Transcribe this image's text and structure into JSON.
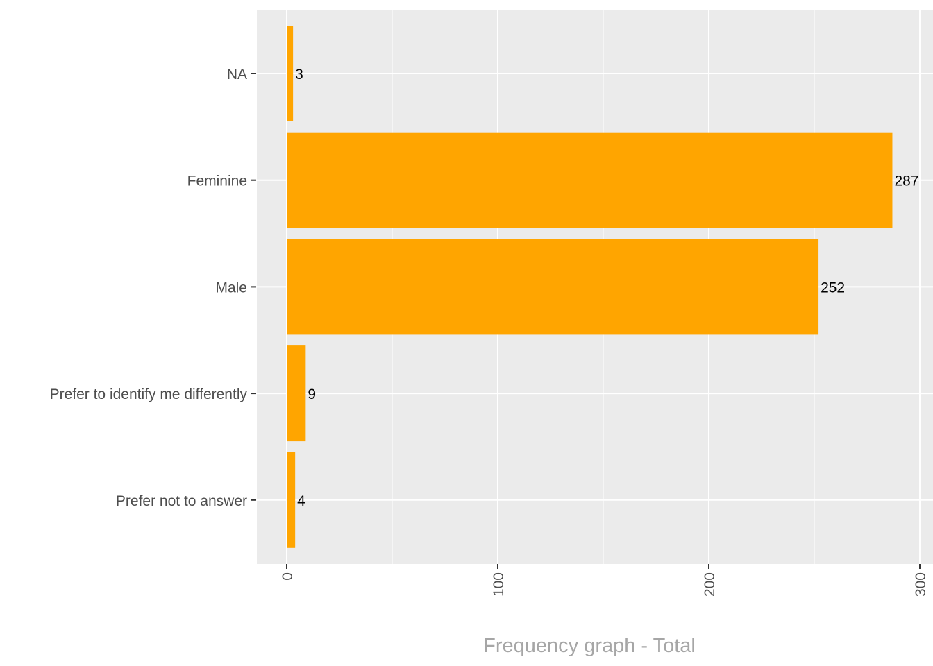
{
  "chart_data": {
    "type": "bar",
    "orientation": "horizontal",
    "categories": [
      "NA",
      "Feminine",
      "Male",
      "Prefer to identify me differently",
      "Prefer not to answer"
    ],
    "values": [
      3,
      287,
      252,
      9,
      4
    ],
    "title": "",
    "xlabel": "Frequency graph - Total",
    "ylabel": "",
    "xlim": [
      -14.1,
      306.2
    ],
    "xticks": [
      0,
      100,
      200,
      300
    ],
    "xtick_labels": [
      "0",
      "100",
      "200",
      "300"
    ],
    "grid": true,
    "bar_color": "#FFA500",
    "panel_color": "#EBEBEB"
  }
}
